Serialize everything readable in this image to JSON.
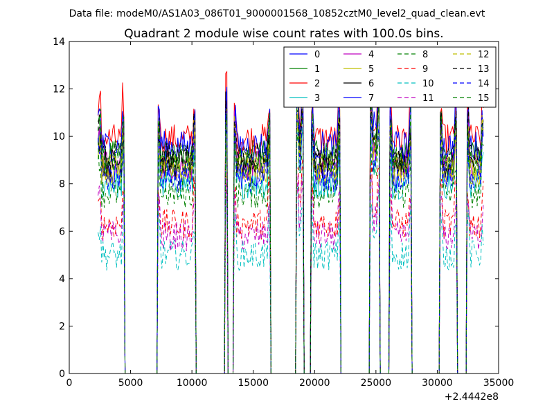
{
  "figure": {
    "suptitle": "Data file: modeM0/AS1A03_086T01_9000001568_10852cztM0_level2_quad_clean.evt"
  },
  "chart_data": {
    "type": "line",
    "title": "Quadrant 2 module wise count rates with 100.0s bins.",
    "xlabel": "",
    "ylabel": "",
    "x_offset_label": "+2.4442e8",
    "xlim": [
      0,
      35000
    ],
    "ylim": [
      0,
      14
    ],
    "xticks": [
      0,
      5000,
      10000,
      15000,
      20000,
      25000,
      30000,
      35000
    ],
    "yticks": [
      0,
      2,
      4,
      6,
      8,
      10,
      12,
      14
    ],
    "grid": false,
    "legend_position": "top-right",
    "legend_columns": 4,
    "bin_size_s": 100,
    "on_intervals": [
      [
        2350,
        4500
      ],
      [
        7200,
        10300
      ],
      [
        12700,
        12900
      ],
      [
        13400,
        16400
      ],
      [
        18500,
        19100
      ],
      [
        19700,
        22100
      ],
      [
        24500,
        25300
      ],
      [
        26100,
        27900
      ],
      [
        30200,
        31600
      ],
      [
        32400,
        33800
      ]
    ],
    "series": [
      {
        "name": "0",
        "color": "#0000ff",
        "dash": "solid",
        "level": 8.4
      },
      {
        "name": "1",
        "color": "#008000",
        "dash": "solid",
        "level": 9.2
      },
      {
        "name": "2",
        "color": "#ff0000",
        "dash": "solid",
        "level": 9.9
      },
      {
        "name": "3",
        "color": "#00bfbf",
        "dash": "solid",
        "level": 8.0
      },
      {
        "name": "4",
        "color": "#bf00bf",
        "dash": "solid",
        "level": 8.8
      },
      {
        "name": "5",
        "color": "#bfbf00",
        "dash": "solid",
        "level": 8.6
      },
      {
        "name": "6",
        "color": "#000000",
        "dash": "solid",
        "level": 8.9
      },
      {
        "name": "7",
        "color": "#0000ff",
        "dash": "solid",
        "level": 9.6
      },
      {
        "name": "8",
        "color": "#008000",
        "dash": "dashed",
        "level": 7.6
      },
      {
        "name": "9",
        "color": "#ff0000",
        "dash": "dashed",
        "level": 6.3
      },
      {
        "name": "10",
        "color": "#00bfbf",
        "dash": "dashed",
        "level": 5.0
      },
      {
        "name": "11",
        "color": "#bf00bf",
        "dash": "dashed",
        "level": 5.8
      },
      {
        "name": "12",
        "color": "#bfbf00",
        "dash": "dashed",
        "level": 8.7
      },
      {
        "name": "13",
        "color": "#000000",
        "dash": "dashed",
        "level": 9.1
      },
      {
        "name": "14",
        "color": "#0000ff",
        "dash": "dashed",
        "level": 8.3
      },
      {
        "name": "15",
        "color": "#008000",
        "dash": "dashed",
        "level": 9.0
      }
    ]
  }
}
